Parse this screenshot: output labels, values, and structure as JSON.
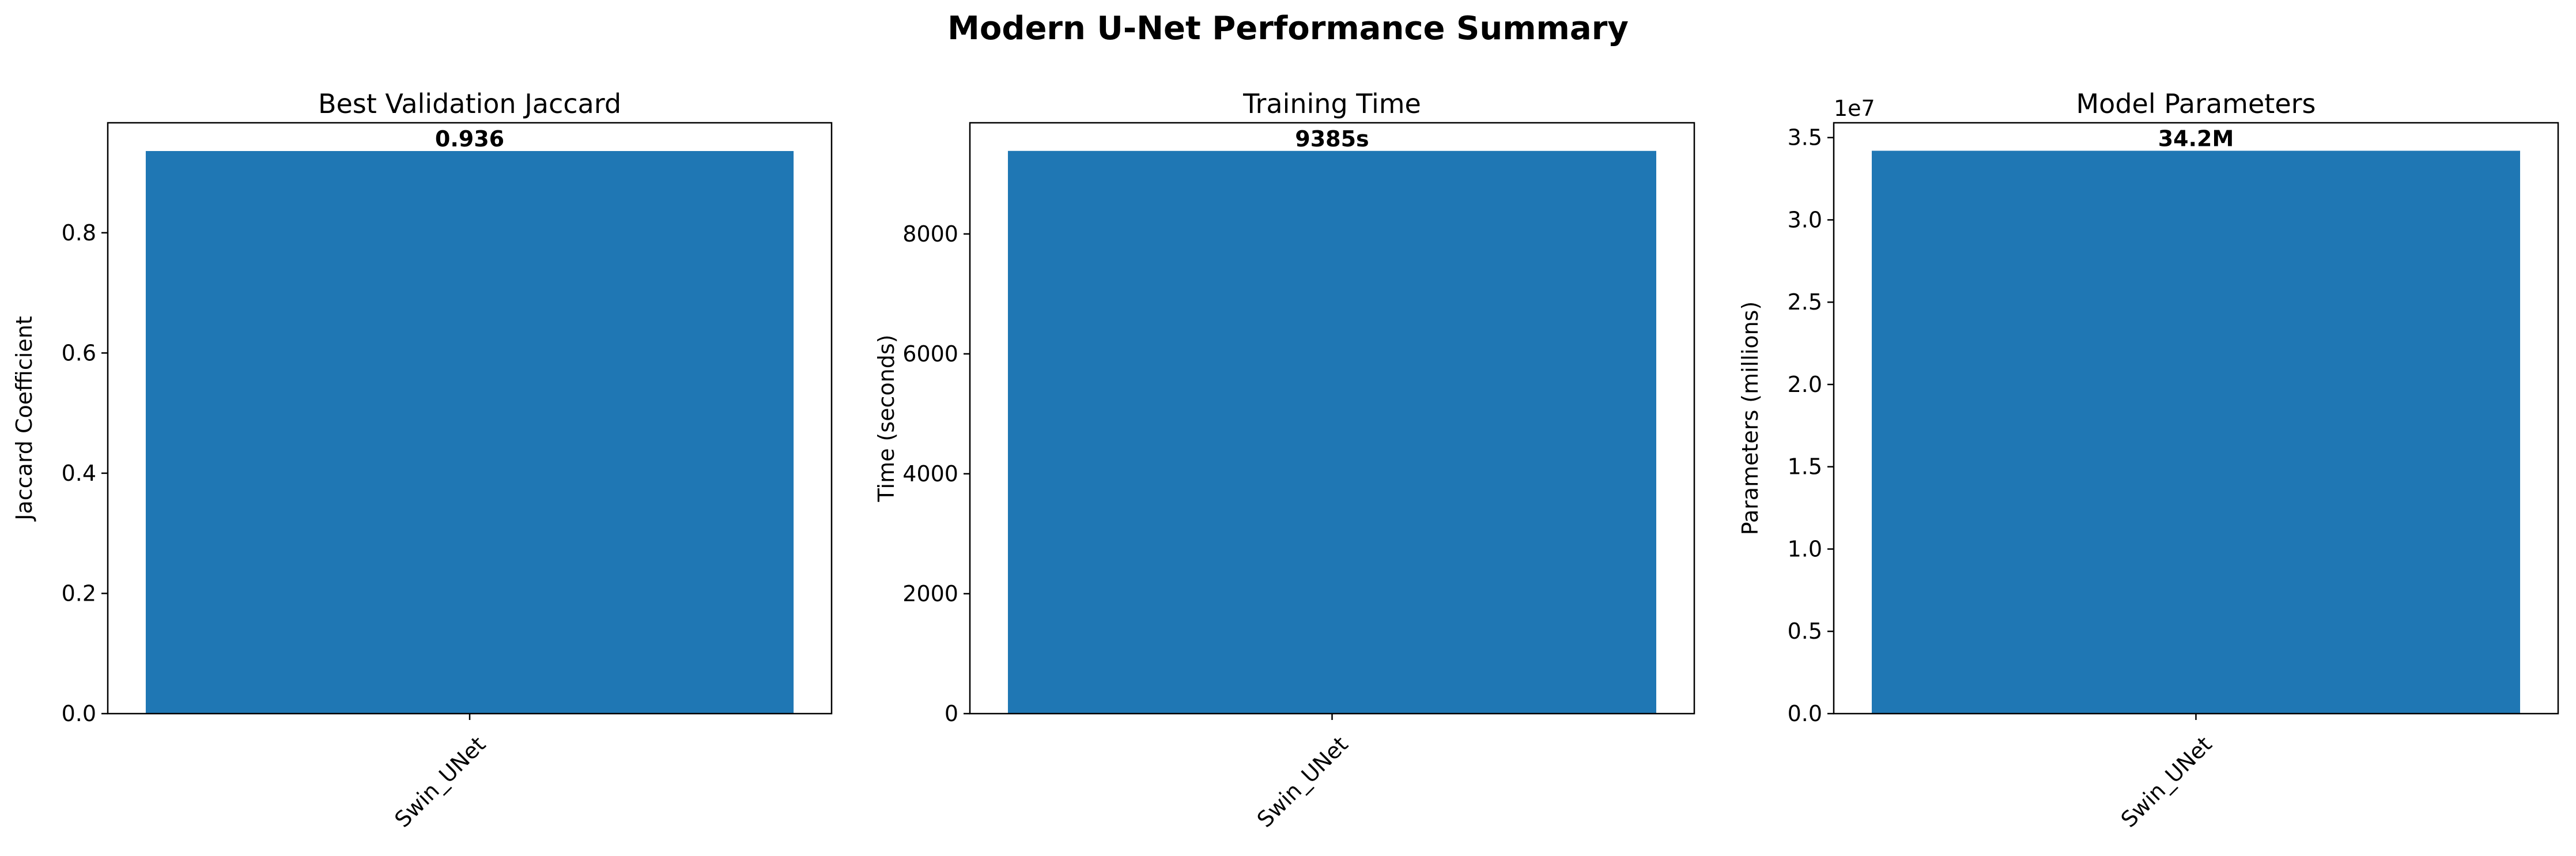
{
  "figure": {
    "title": "Modern U-Net Performance Summary"
  },
  "colors": {
    "bar": "#1f77b4",
    "axis": "#000000",
    "background": "#ffffff"
  },
  "chart_data": [
    {
      "type": "bar",
      "title": "Best Validation Jaccard",
      "xlabel": "",
      "ylabel": "Jaccard Coefficient",
      "categories": [
        "Swin_UNet"
      ],
      "values": [
        0.936
      ],
      "bar_labels": [
        "0.936"
      ],
      "ylim": [
        0,
        0.983
      ],
      "yticks": [
        0.0,
        0.2,
        0.4,
        0.6,
        0.8
      ],
      "ytick_labels": [
        "0.0",
        "0.2",
        "0.4",
        "0.6",
        "0.8"
      ],
      "offset_label": "",
      "xtick_rotation": 45,
      "grid": false,
      "legend": false
    },
    {
      "type": "bar",
      "title": "Training Time",
      "xlabel": "",
      "ylabel": "Time (seconds)",
      "categories": [
        "Swin_UNet"
      ],
      "values": [
        9385
      ],
      "bar_labels": [
        "9385s"
      ],
      "ylim": [
        0,
        9854
      ],
      "yticks": [
        0,
        2000,
        4000,
        6000,
        8000
      ],
      "ytick_labels": [
        "0",
        "2000",
        "4000",
        "6000",
        "8000"
      ],
      "offset_label": "",
      "xtick_rotation": 45,
      "grid": false,
      "legend": false
    },
    {
      "type": "bar",
      "title": "Model Parameters",
      "xlabel": "",
      "ylabel": "Parameters (millions)",
      "categories": [
        "Swin_UNet"
      ],
      "values": [
        34200000
      ],
      "bar_labels": [
        "34.2M"
      ],
      "ylim": [
        0,
        35900000
      ],
      "yticks": [
        0,
        5000000,
        10000000,
        15000000,
        20000000,
        25000000,
        30000000,
        35000000
      ],
      "ytick_labels": [
        "0.0",
        "0.5",
        "1.0",
        "1.5",
        "2.0",
        "2.5",
        "3.0",
        "3.5"
      ],
      "offset_label": "1e7",
      "xtick_rotation": 45,
      "grid": false,
      "legend": false
    }
  ]
}
